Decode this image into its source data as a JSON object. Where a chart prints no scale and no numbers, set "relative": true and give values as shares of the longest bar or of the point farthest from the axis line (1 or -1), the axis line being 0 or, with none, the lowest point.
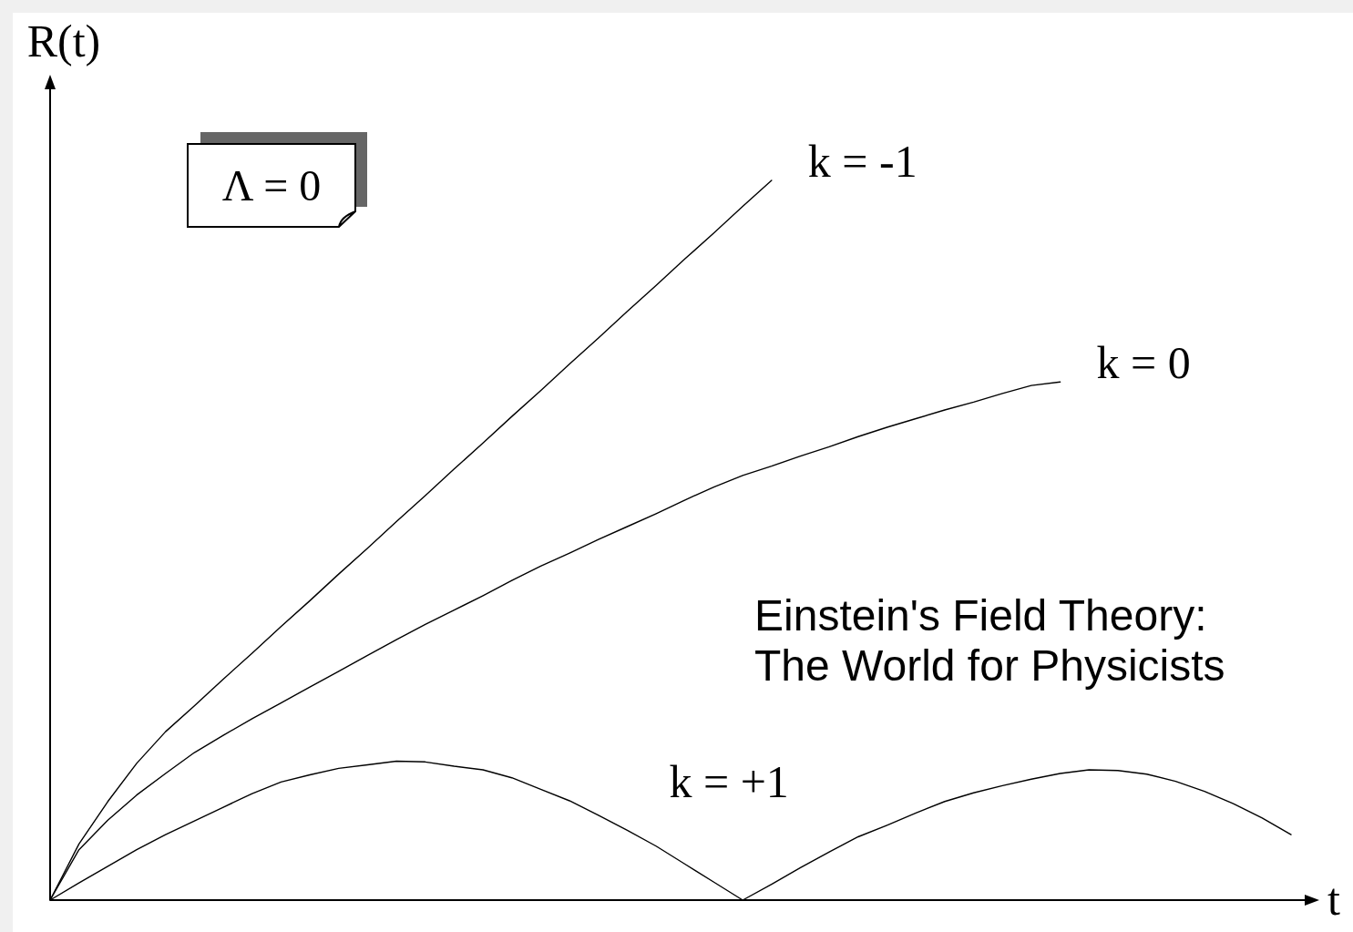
{
  "chart_data": {
    "type": "line",
    "xlabel": "t",
    "ylabel": "R(t)",
    "relative": true,
    "categories": [
      null,
      null,
      null,
      null,
      null,
      null,
      null,
      null,
      null,
      null,
      null,
      null,
      null,
      null,
      null,
      null,
      null,
      null,
      null,
      null,
      null,
      null,
      null,
      null,
      null,
      null,
      null,
      null,
      null,
      null,
      null,
      null,
      null,
      null,
      null,
      null,
      null,
      null,
      null,
      null,
      null,
      null,
      null,
      null
    ],
    "series": [
      {
        "name": "k = -1",
        "color": "#000000",
        "values": [
          0,
          0.078,
          0.137,
          0.19,
          0.234,
          0.27,
          0.307,
          0.343,
          0.38,
          0.416,
          0.453,
          0.489,
          0.526,
          0.562,
          0.599,
          0.635,
          0.672,
          0.708,
          0.745,
          0.781,
          0.818,
          0.854,
          0.891,
          0.927,
          0.964,
          1.0,
          null,
          null,
          null,
          null,
          null,
          null,
          null,
          null,
          null,
          null,
          null,
          null,
          null,
          null,
          null,
          null,
          null,
          null
        ]
      },
      {
        "name": "k = 0",
        "color": "#000000",
        "values": [
          0,
          0.07,
          0.111,
          0.146,
          0.176,
          0.205,
          0.229,
          0.252,
          0.274,
          0.296,
          0.318,
          0.34,
          0.362,
          0.383,
          0.403,
          0.423,
          0.444,
          0.464,
          0.482,
          0.501,
          0.519,
          0.537,
          0.556,
          0.574,
          0.59,
          0.603,
          0.617,
          0.63,
          0.644,
          0.657,
          0.669,
          0.681,
          0.692,
          0.704,
          0.715,
          0.72,
          null,
          null,
          null,
          null,
          null,
          null,
          null,
          null
        ]
      },
      {
        "name": "k = +1",
        "color": "#000000",
        "values": [
          0,
          0.024,
          0.047,
          0.07,
          0.091,
          0.11,
          0.129,
          0.148,
          0.164,
          0.174,
          0.183,
          0.188,
          0.193,
          0.192,
          0.186,
          0.181,
          0.17,
          0.154,
          0.138,
          0.118,
          0.097,
          0.075,
          0.05,
          0.025,
          0,
          0.022,
          0.045,
          0.067,
          0.088,
          0.104,
          0.121,
          0.137,
          0.149,
          0.159,
          0.168,
          0.176,
          0.181,
          0.18,
          0.175,
          0.165,
          0.151,
          0.134,
          0.114,
          0.091
        ]
      }
    ],
    "annotations": [
      "Λ = 0",
      "Einstein's Field Theory:\nThe World for Physicists"
    ]
  }
}
